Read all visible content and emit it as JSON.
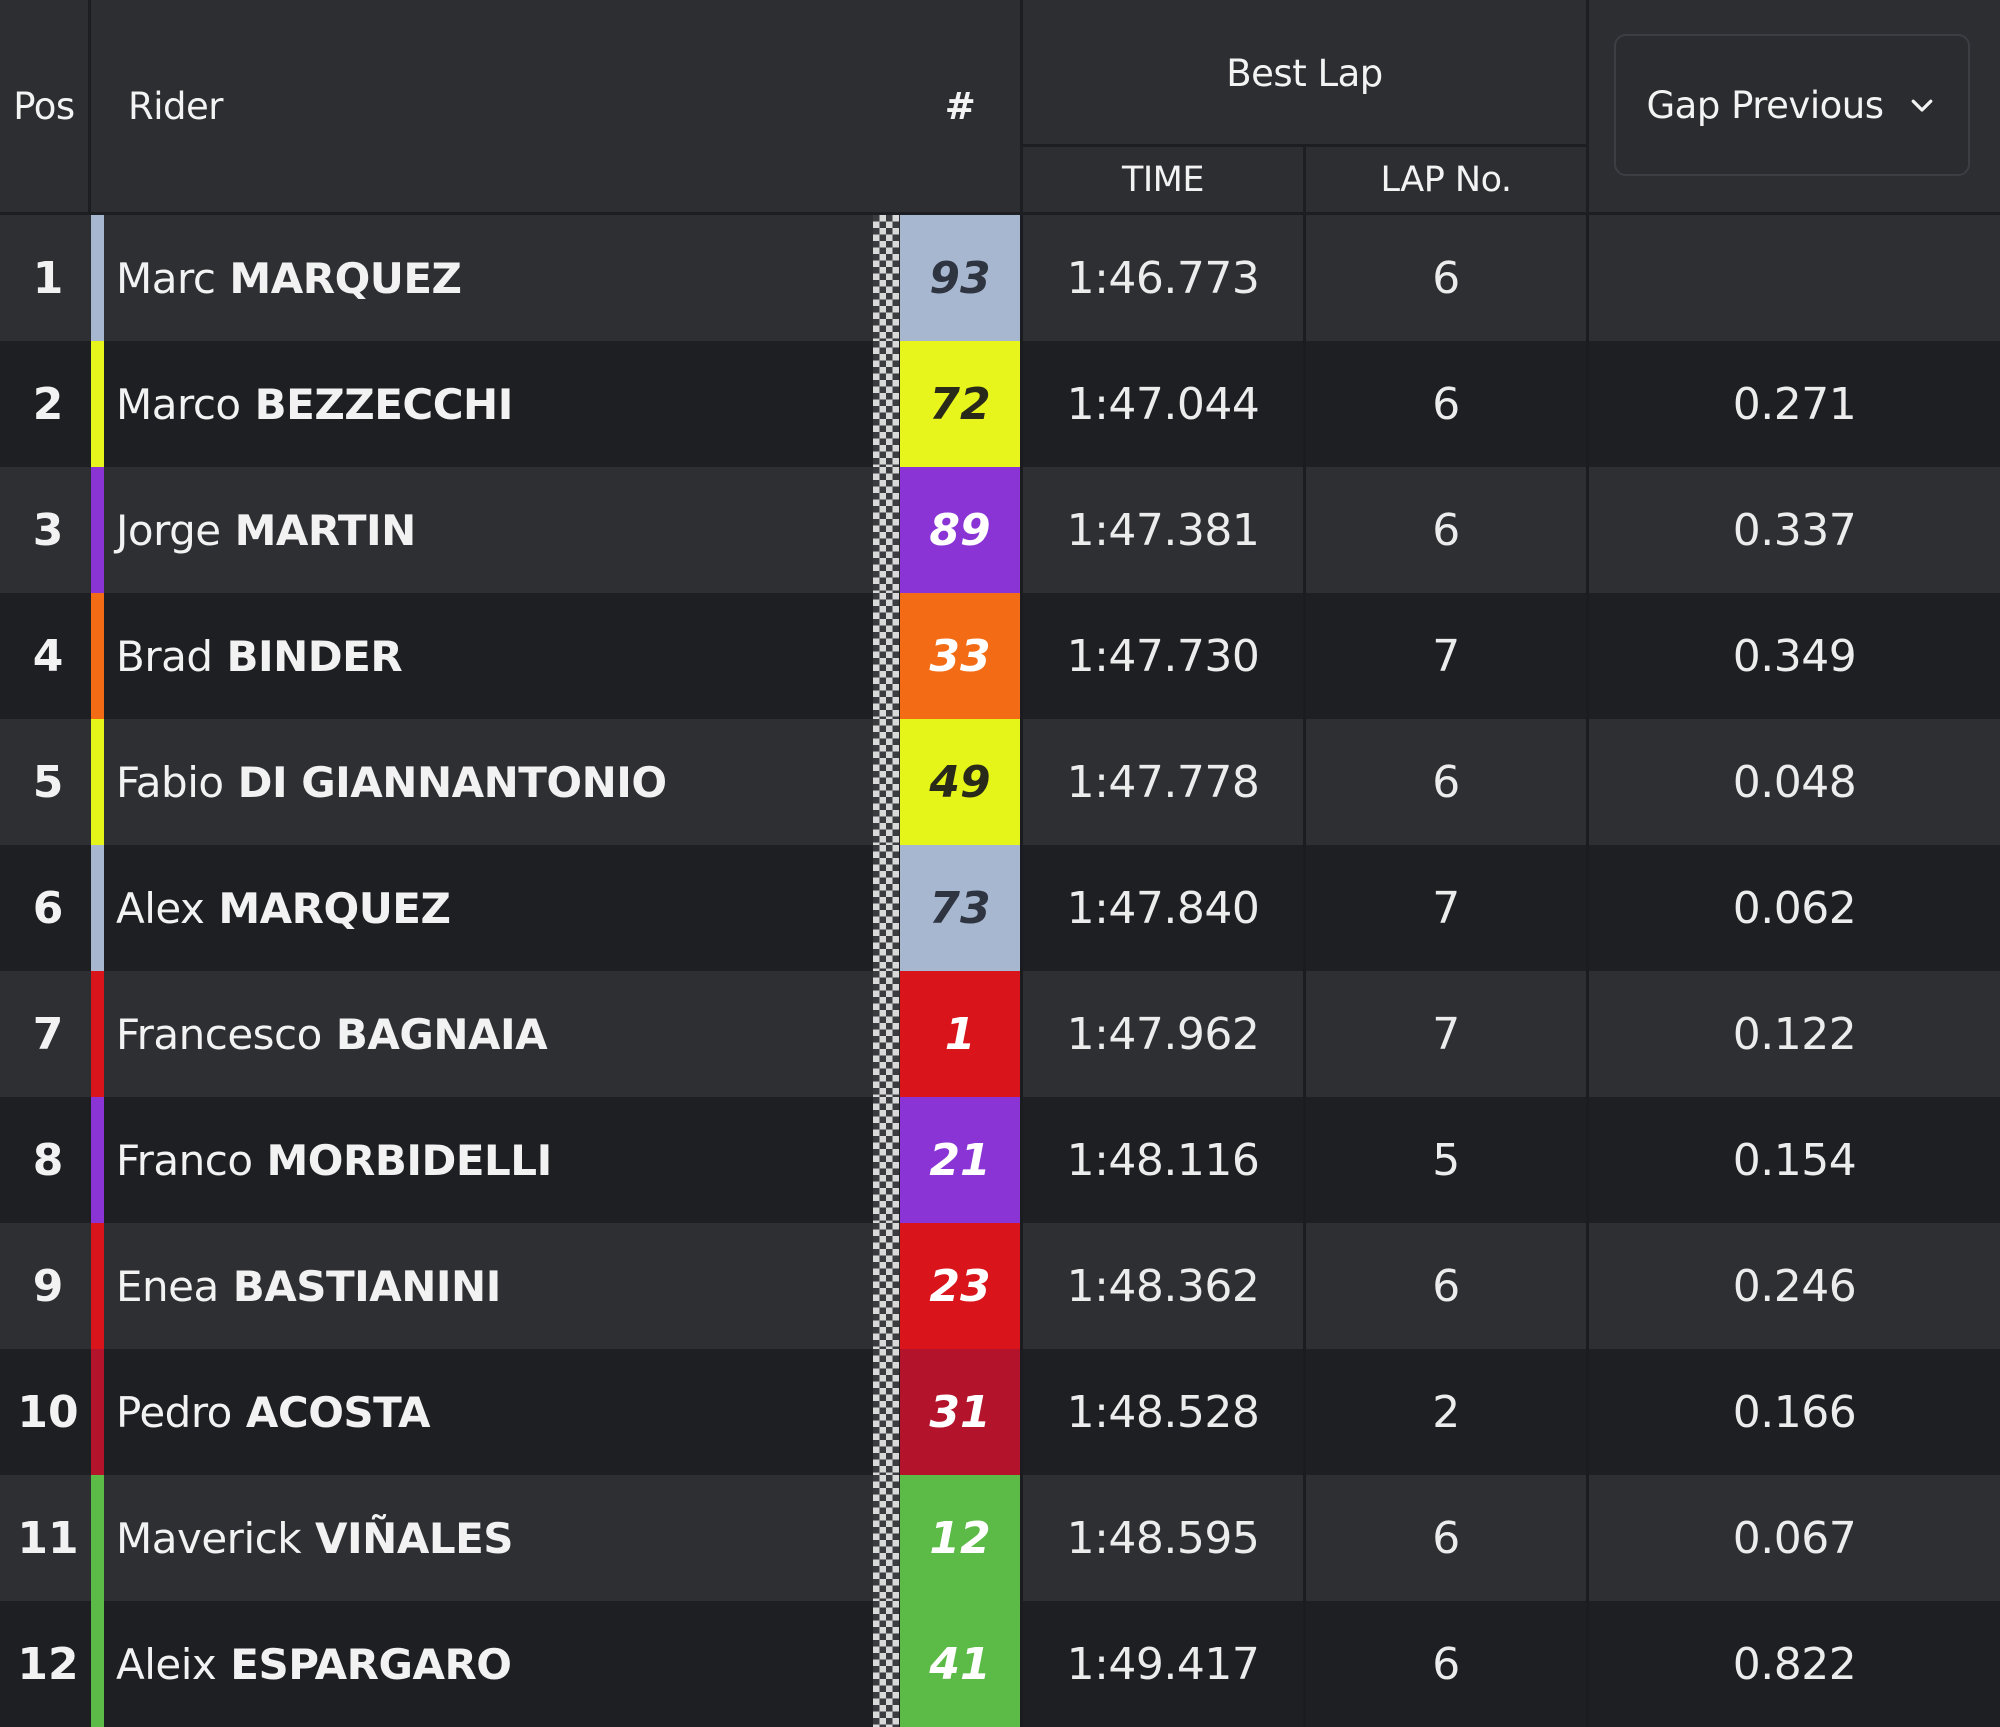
{
  "header": {
    "pos": "Pos",
    "rider": "Rider",
    "number": "#",
    "best_lap": "Best Lap",
    "time": "TIME",
    "lap_no": "LAP No.",
    "gap_select": {
      "label": "Gap Previous",
      "icon": "chevron-down-icon"
    }
  },
  "rows": [
    {
      "pos": "1",
      "first": "Marc",
      "last": "MARQUEZ",
      "number": "93",
      "color": "#a7b7d0",
      "num_text": "#2e3440",
      "time": "1:46.773",
      "lap": "6",
      "gap": ""
    },
    {
      "pos": "2",
      "first": "Marco",
      "last": "BEZZECCHI",
      "number": "72",
      "color": "#e8f51c",
      "num_text": "#2a2a1a",
      "time": "1:47.044",
      "lap": "6",
      "gap": "0.271"
    },
    {
      "pos": "3",
      "first": "Jorge",
      "last": "MARTIN",
      "number": "89",
      "color": "#8a34d6",
      "num_text": "#ffffff",
      "time": "1:47.381",
      "lap": "6",
      "gap": "0.337"
    },
    {
      "pos": "4",
      "first": "Brad",
      "last": "BINDER",
      "number": "33",
      "color": "#f36b15",
      "num_text": "#ffffff",
      "time": "1:47.730",
      "lap": "7",
      "gap": "0.349"
    },
    {
      "pos": "5",
      "first": "Fabio",
      "last": "DI GIANNANTONIO",
      "number": "49",
      "color": "#e5f51a",
      "num_text": "#2a2a1a",
      "time": "1:47.778",
      "lap": "6",
      "gap": "0.048"
    },
    {
      "pos": "6",
      "first": "Alex",
      "last": "MARQUEZ",
      "number": "73",
      "color": "#a7b7d0",
      "num_text": "#2e3440",
      "time": "1:47.840",
      "lap": "7",
      "gap": "0.062"
    },
    {
      "pos": "7",
      "first": "Francesco",
      "last": "BAGNAIA",
      "number": "1",
      "color": "#d9141b",
      "num_text": "#ffffff",
      "time": "1:47.962",
      "lap": "7",
      "gap": "0.122"
    },
    {
      "pos": "8",
      "first": "Franco",
      "last": "MORBIDELLI",
      "number": "21",
      "color": "#8a34d6",
      "num_text": "#ffffff",
      "time": "1:48.116",
      "lap": "5",
      "gap": "0.154"
    },
    {
      "pos": "9",
      "first": "Enea",
      "last": "BASTIANINI",
      "number": "23",
      "color": "#d9141b",
      "num_text": "#ffffff",
      "time": "1:48.362",
      "lap": "6",
      "gap": "0.246"
    },
    {
      "pos": "10",
      "first": "Pedro",
      "last": "ACOSTA",
      "number": "31",
      "color": "#b3142b",
      "num_text": "#ffffff",
      "time": "1:48.528",
      "lap": "2",
      "gap": "0.166"
    },
    {
      "pos": "11",
      "first": "Maverick",
      "last": "VIÑALES",
      "number": "12",
      "color": "#5cbb46",
      "num_text": "#ffffff",
      "time": "1:48.595",
      "lap": "6",
      "gap": "0.067"
    },
    {
      "pos": "12",
      "first": "Aleix",
      "last": "ESPARGARO",
      "number": "41",
      "color": "#5cbb46",
      "num_text": "#ffffff",
      "time": "1:49.417",
      "lap": "6",
      "gap": "0.822"
    }
  ]
}
